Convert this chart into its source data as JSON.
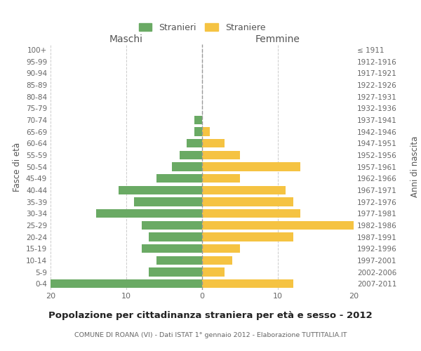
{
  "age_groups": [
    "0-4",
    "5-9",
    "10-14",
    "15-19",
    "20-24",
    "25-29",
    "30-34",
    "35-39",
    "40-44",
    "45-49",
    "50-54",
    "55-59",
    "60-64",
    "65-69",
    "70-74",
    "75-79",
    "80-84",
    "85-89",
    "90-94",
    "95-99",
    "100+"
  ],
  "birth_years": [
    "2007-2011",
    "2002-2006",
    "1997-2001",
    "1992-1996",
    "1987-1991",
    "1982-1986",
    "1977-1981",
    "1972-1976",
    "1967-1971",
    "1962-1966",
    "1957-1961",
    "1952-1956",
    "1947-1951",
    "1942-1946",
    "1937-1941",
    "1932-1936",
    "1927-1931",
    "1922-1926",
    "1917-1921",
    "1912-1916",
    "≤ 1911"
  ],
  "maschi": [
    20,
    7,
    6,
    8,
    7,
    8,
    14,
    9,
    11,
    6,
    4,
    3,
    2,
    1,
    1,
    0,
    0,
    0,
    0,
    0,
    0
  ],
  "femmine": [
    12,
    3,
    4,
    5,
    12,
    20,
    13,
    12,
    11,
    5,
    13,
    5,
    3,
    1,
    0,
    0,
    0,
    0,
    0,
    0,
    0
  ],
  "male_color": "#6aaa64",
  "female_color": "#f5c342",
  "title": "Popolazione per cittadinanza straniera per età e sesso - 2012",
  "subtitle": "COMUNE DI ROANA (VI) - Dati ISTAT 1° gennaio 2012 - Elaborazione TUTTITALIA.IT",
  "legend_male": "Stranieri",
  "legend_female": "Straniere",
  "xlabel_left": "Maschi",
  "xlabel_right": "Femmine",
  "ylabel_left": "Fasce di età",
  "ylabel_right": "Anni di nascita",
  "xlim": 20,
  "background_color": "#ffffff",
  "grid_color": "#cccccc"
}
